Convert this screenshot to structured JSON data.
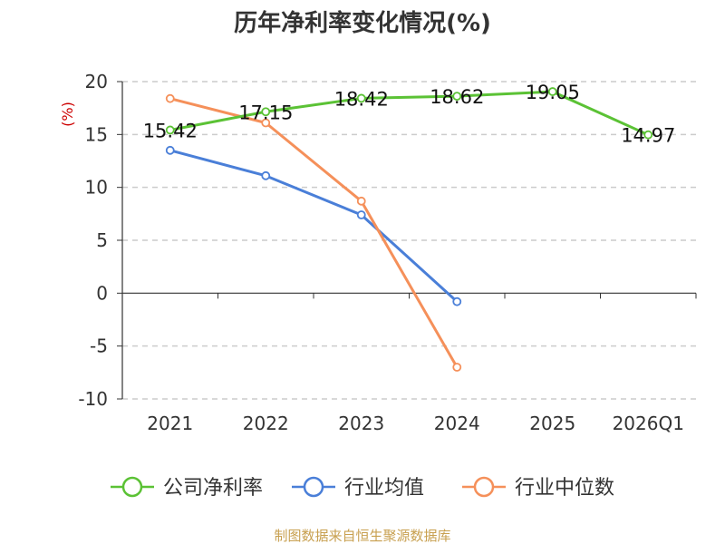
{
  "chart_data": {
    "type": "line",
    "title": "历年净利率变化情况(%)",
    "y_unit": "(%)",
    "categories": [
      "2021",
      "2022",
      "2023",
      "2024",
      "2025",
      "2026Q1"
    ],
    "ylim": [
      -10,
      20
    ],
    "yticks": [
      "20",
      "15",
      "10",
      "5",
      "0",
      "-5",
      "-10"
    ],
    "grid": true,
    "legend_position": "bottom",
    "series": [
      {
        "name": "公司净利率",
        "color": "#5bc235",
        "values": [
          15.42,
          17.15,
          18.42,
          18.62,
          19.05,
          14.97
        ],
        "labels": [
          "15.42",
          "17.15",
          "18.42",
          "18.62",
          "19.05",
          "14.97"
        ]
      },
      {
        "name": "行业均值",
        "color": "#4a7fd8",
        "values": [
          13.5,
          11.1,
          7.4,
          -0.8,
          null,
          null
        ]
      },
      {
        "name": "行业中位数",
        "color": "#f5905a",
        "values": [
          18.4,
          16.1,
          8.7,
          -7.0,
          null,
          null
        ]
      }
    ]
  },
  "source": "制图数据来自恒生聚源数据库"
}
